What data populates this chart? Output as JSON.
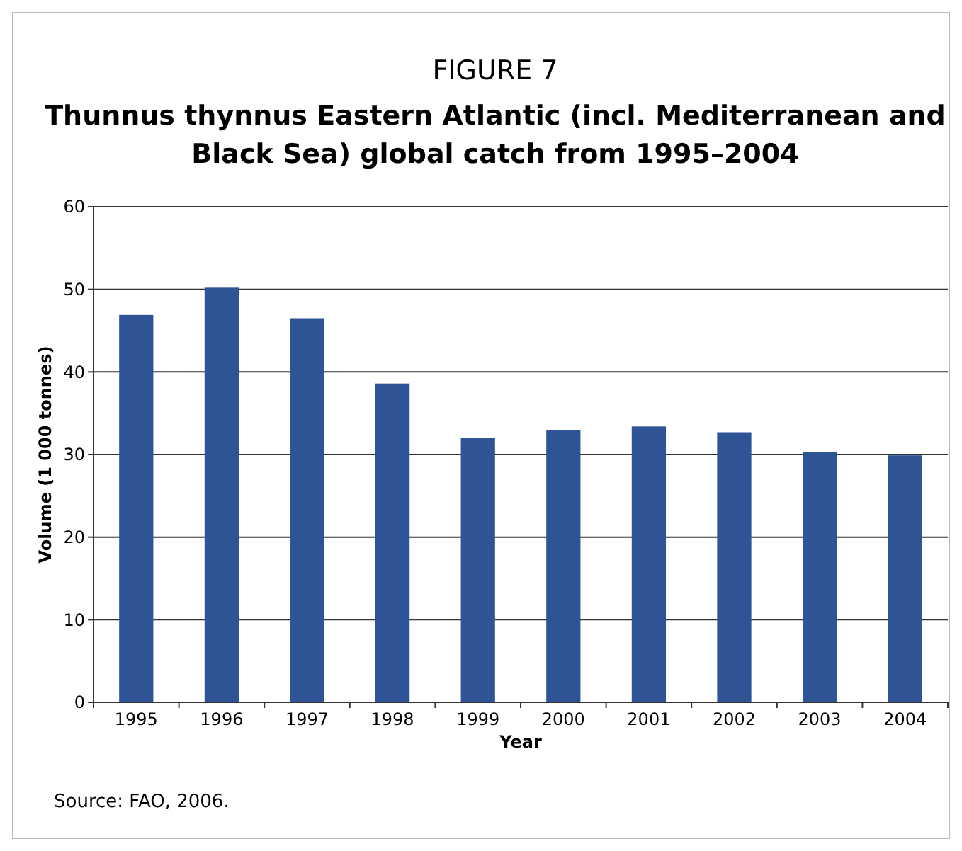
{
  "chart_data": {
    "type": "bar",
    "title": "FIGURE 7",
    "subtitle": "Thunnus thynnus Eastern Atlantic (incl. Mediterranean and Black Sea) global catch from 1995–2004",
    "xlabel": "Year",
    "ylabel": "Volume (1 000 tonnes)",
    "categories": [
      "1995",
      "1996",
      "1997",
      "1998",
      "1999",
      "2000",
      "2001",
      "2002",
      "2003",
      "2004"
    ],
    "values": [
      46.9,
      50.2,
      46.5,
      38.6,
      32.0,
      33.0,
      33.4,
      32.7,
      30.3,
      29.9
    ],
    "color": "#2f5496",
    "ylim": [
      0,
      60
    ],
    "yticks": [
      0,
      10,
      20,
      30,
      40,
      50,
      60
    ],
    "grid": "y",
    "annotations": [
      "Source: FAO, 2006."
    ]
  }
}
